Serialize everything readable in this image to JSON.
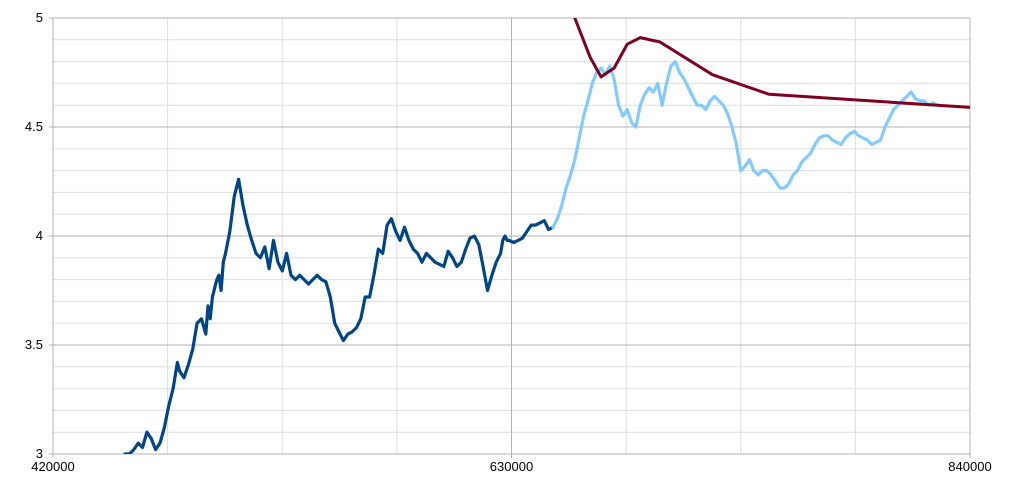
{
  "chart_data": {
    "type": "line",
    "title": "",
    "xlabel": "",
    "ylabel": "",
    "xlim": [
      420000,
      840000
    ],
    "ylim": [
      3,
      5
    ],
    "x_ticks": [
      {
        "value": 420000,
        "label": "420000"
      },
      {
        "value": 630000,
        "label": "630000"
      },
      {
        "value": 840000,
        "label": "840000"
      }
    ],
    "y_ticks": [
      {
        "value": 3,
        "label": "3"
      },
      {
        "value": 3.5,
        "label": "3.5"
      },
      {
        "value": 4,
        "label": "4"
      },
      {
        "value": 4.5,
        "label": "4.5"
      },
      {
        "value": 5,
        "label": "5"
      }
    ],
    "grid": true,
    "legend": "none",
    "colors": {
      "series_dark": "#004586",
      "series_light": "#83CAFF",
      "series_trend": "#7E0021",
      "grid_major": "#b3b3b3",
      "grid_minor": "#dddddd"
    },
    "series": [
      {
        "color": "#004586",
        "x": [
          453000,
          455000,
          457000,
          459000,
          461000,
          463000,
          465000,
          467000,
          469000,
          471000,
          473000,
          475000,
          477000,
          478000,
          480000,
          482000,
          484000,
          486000,
          488000,
          490000,
          491000,
          492000,
          493000,
          494000,
          495000,
          496000,
          497000,
          498000,
          499000,
          501000,
          503000,
          505000,
          507000,
          509000,
          511000,
          513000,
          515000,
          517000,
          519000,
          521000,
          523000,
          525000,
          527000,
          529000,
          531000,
          533000,
          535000,
          537000,
          539000,
          541000,
          543000,
          545000,
          547000,
          549000,
          551000,
          553000,
          555000,
          557000,
          559000,
          561000,
          563000,
          565000,
          567000,
          569000,
          571000,
          573000,
          575000,
          577000,
          579000,
          581000,
          583000,
          585000,
          587000,
          589000,
          591000,
          593000,
          595000,
          597000,
          599000,
          601000,
          603000,
          605000,
          607000,
          609000,
          611000,
          613000,
          615000,
          617000,
          619000,
          621000,
          623000,
          625000,
          626000,
          627000,
          628000,
          629000,
          631000,
          633000,
          635000,
          637000,
          639000,
          641000,
          643000,
          645000,
          647000,
          649000
        ],
        "y": [
          3.0,
          3.0,
          3.02,
          3.05,
          3.03,
          3.1,
          3.07,
          3.02,
          3.05,
          3.12,
          3.22,
          3.3,
          3.42,
          3.38,
          3.35,
          3.41,
          3.48,
          3.6,
          3.62,
          3.55,
          3.68,
          3.62,
          3.72,
          3.76,
          3.8,
          3.82,
          3.75,
          3.88,
          3.92,
          4.02,
          4.18,
          4.26,
          4.14,
          4.05,
          3.98,
          3.92,
          3.9,
          3.95,
          3.85,
          3.98,
          3.88,
          3.84,
          3.92,
          3.82,
          3.8,
          3.82,
          3.8,
          3.78,
          3.8,
          3.82,
          3.8,
          3.79,
          3.72,
          3.6,
          3.56,
          3.52,
          3.55,
          3.56,
          3.58,
          3.62,
          3.72,
          3.72,
          3.82,
          3.94,
          3.92,
          4.05,
          4.08,
          4.02,
          3.98,
          4.04,
          3.98,
          3.94,
          3.92,
          3.88,
          3.92,
          3.9,
          3.88,
          3.87,
          3.86,
          3.93,
          3.9,
          3.86,
          3.88,
          3.94,
          3.99,
          4.0,
          3.96,
          3.86,
          3.75,
          3.82,
          3.88,
          3.92,
          3.98,
          4.0,
          3.98,
          3.98,
          3.97,
          3.98,
          3.99,
          4.02,
          4.05,
          4.05,
          4.06,
          4.07,
          4.03,
          4.04
        ]
      },
      {
        "color": "#83CAFF",
        "x": [
          649000,
          651000,
          653000,
          655000,
          657000,
          659000,
          661000,
          663000,
          665000,
          667000,
          669000,
          671000,
          673000,
          675000,
          677000,
          679000,
          681000,
          683000,
          685000,
          687000,
          689000,
          691000,
          693000,
          695000,
          697000,
          699000,
          701000,
          703000,
          705000,
          707000,
          709000,
          711000,
          713000,
          715000,
          717000,
          719000,
          721000,
          723000,
          725000,
          727000,
          729000,
          731000,
          733000,
          735000,
          737000,
          739000,
          741000,
          743000,
          745000,
          747000,
          749000,
          751000,
          753000,
          755000,
          757000,
          759000,
          761000,
          763000,
          765000,
          767000,
          769000,
          771000,
          773000,
          775000,
          777000,
          779000,
          781000,
          783000,
          785000,
          787000,
          789000,
          791000,
          793000,
          795000,
          797000,
          799000,
          801000,
          803000,
          805000,
          807000,
          809000,
          811000,
          813000,
          815000,
          817000,
          819000,
          821000,
          823000,
          825000
        ],
        "y": [
          4.04,
          4.08,
          4.14,
          4.22,
          4.28,
          4.35,
          4.45,
          4.55,
          4.62,
          4.7,
          4.75,
          4.77,
          4.74,
          4.78,
          4.72,
          4.6,
          4.55,
          4.58,
          4.52,
          4.5,
          4.6,
          4.65,
          4.68,
          4.66,
          4.7,
          4.6,
          4.7,
          4.78,
          4.8,
          4.75,
          4.72,
          4.68,
          4.64,
          4.6,
          4.6,
          4.58,
          4.62,
          4.64,
          4.62,
          4.6,
          4.56,
          4.5,
          4.42,
          4.3,
          4.32,
          4.35,
          4.3,
          4.28,
          4.3,
          4.3,
          4.28,
          4.25,
          4.22,
          4.22,
          4.24,
          4.28,
          4.3,
          4.34,
          4.36,
          4.38,
          4.42,
          4.45,
          4.46,
          4.46,
          4.44,
          4.43,
          4.42,
          4.45,
          4.47,
          4.48,
          4.46,
          4.45,
          4.44,
          4.42,
          4.43,
          4.44,
          4.5,
          4.54,
          4.58,
          4.6,
          4.62,
          4.64,
          4.66,
          4.63,
          4.62,
          4.62,
          4.6,
          4.61,
          4.6
        ]
      },
      {
        "color": "#7E0021",
        "x": [
          659000,
          666000,
          671000,
          677000,
          683000,
          689000,
          698000,
          722000,
          748000,
          840000
        ],
        "y": [
          5.0,
          4.82,
          4.73,
          4.77,
          4.88,
          4.91,
          4.89,
          4.74,
          4.65,
          4.59
        ]
      }
    ]
  }
}
